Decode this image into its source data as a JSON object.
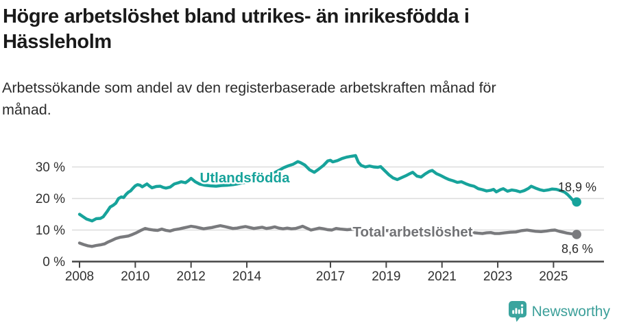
{
  "header": {
    "title": "Högre arbetslöshet bland utrikes- än inrikesfödda i\nHässleholm",
    "subtitle": "Arbetssökande som andel av den registerbaserade arbetskraften månad för\nmånad."
  },
  "chart_data": {
    "type": "line",
    "unit": "percent of registered labour force",
    "x_axis": {
      "ticks": [
        {
          "label": "2008",
          "year": 2008
        },
        {
          "label": "2010",
          "year": 2010
        },
        {
          "label": "2012",
          "year": 2012
        },
        {
          "label": "2014",
          "year": 2014
        },
        {
          "label": "2017",
          "year": 2017
        },
        {
          "label": "2019",
          "year": 2019
        },
        {
          "label": "2021",
          "year": 2021
        },
        {
          "label": "2023",
          "year": 2023
        },
        {
          "label": "2025",
          "year": 2025
        }
      ],
      "range": [
        2008,
        2025.9
      ]
    },
    "y_axis": {
      "ticks": [
        {
          "label": "0 %",
          "value": 0
        },
        {
          "label": "10 %",
          "value": 10
        },
        {
          "label": "20 %",
          "value": 20
        },
        {
          "label": "30 %",
          "value": 30
        }
      ],
      "range": [
        0,
        34
      ],
      "grid": true
    },
    "colors": {
      "gridline": "#dcdcdc",
      "axis": "#454545"
    },
    "series": [
      {
        "name": "Utlandsfödda",
        "color": "#17a39b",
        "end_label": "18,9 %",
        "end_value": 18.9,
        "points": [
          [
            2008.0,
            15.0
          ],
          [
            2008.1,
            14.4
          ],
          [
            2008.25,
            13.5
          ],
          [
            2008.45,
            12.9
          ],
          [
            2008.6,
            13.6
          ],
          [
            2008.75,
            13.7
          ],
          [
            2008.85,
            14.2
          ],
          [
            2009.0,
            16.0
          ],
          [
            2009.1,
            17.3
          ],
          [
            2009.2,
            17.8
          ],
          [
            2009.3,
            18.5
          ],
          [
            2009.4,
            20.0
          ],
          [
            2009.5,
            20.5
          ],
          [
            2009.58,
            20.3
          ],
          [
            2009.67,
            21.3
          ],
          [
            2009.75,
            22.0
          ],
          [
            2009.83,
            22.4
          ],
          [
            2009.92,
            23.3
          ],
          [
            2010.0,
            24.0
          ],
          [
            2010.08,
            24.4
          ],
          [
            2010.17,
            24.2
          ],
          [
            2010.25,
            23.7
          ],
          [
            2010.42,
            24.6
          ],
          [
            2010.5,
            24.0
          ],
          [
            2010.6,
            23.4
          ],
          [
            2010.75,
            23.8
          ],
          [
            2010.9,
            23.9
          ],
          [
            2011.0,
            23.5
          ],
          [
            2011.1,
            23.3
          ],
          [
            2011.25,
            23.6
          ],
          [
            2011.4,
            24.6
          ],
          [
            2011.55,
            25.0
          ],
          [
            2011.65,
            25.3
          ],
          [
            2011.8,
            25.0
          ],
          [
            2011.9,
            25.6
          ],
          [
            2012.0,
            26.4
          ],
          [
            2012.15,
            25.3
          ],
          [
            2012.3,
            24.6
          ],
          [
            2012.5,
            24.2
          ],
          [
            2012.7,
            24.0
          ],
          [
            2012.9,
            23.9
          ],
          [
            2013.1,
            24.1
          ],
          [
            2013.3,
            24.2
          ],
          [
            2013.5,
            24.4
          ],
          [
            2013.65,
            24.6
          ],
          [
            2013.8,
            24.9
          ],
          [
            2014.0,
            25.2
          ],
          [
            2014.17,
            25.4
          ],
          [
            2014.33,
            25.8
          ],
          [
            2014.5,
            26.2
          ],
          [
            2014.67,
            26.8
          ],
          [
            2014.83,
            27.5
          ],
          [
            2015.0,
            28.2
          ],
          [
            2015.17,
            29.0
          ],
          [
            2015.33,
            29.8
          ],
          [
            2015.5,
            30.4
          ],
          [
            2015.67,
            30.9
          ],
          [
            2015.83,
            31.7
          ],
          [
            2015.92,
            31.4
          ],
          [
            2016.08,
            30.6
          ],
          [
            2016.25,
            29.1
          ],
          [
            2016.42,
            28.3
          ],
          [
            2016.58,
            29.3
          ],
          [
            2016.75,
            30.5
          ],
          [
            2016.9,
            31.9
          ],
          [
            2017.0,
            32.1
          ],
          [
            2017.08,
            31.6
          ],
          [
            2017.25,
            32.0
          ],
          [
            2017.42,
            32.7
          ],
          [
            2017.58,
            33.1
          ],
          [
            2017.75,
            33.4
          ],
          [
            2017.9,
            33.6
          ],
          [
            2018.0,
            31.5
          ],
          [
            2018.1,
            30.5
          ],
          [
            2018.25,
            30.0
          ],
          [
            2018.4,
            30.3
          ],
          [
            2018.55,
            30.0
          ],
          [
            2018.7,
            29.9
          ],
          [
            2018.8,
            30.1
          ],
          [
            2018.95,
            28.8
          ],
          [
            2019.1,
            27.5
          ],
          [
            2019.25,
            26.5
          ],
          [
            2019.4,
            26.0
          ],
          [
            2019.55,
            26.6
          ],
          [
            2019.7,
            27.2
          ],
          [
            2019.85,
            27.9
          ],
          [
            2019.95,
            28.3
          ],
          [
            2020.1,
            27.1
          ],
          [
            2020.25,
            26.8
          ],
          [
            2020.4,
            27.8
          ],
          [
            2020.55,
            28.6
          ],
          [
            2020.65,
            28.9
          ],
          [
            2020.8,
            27.9
          ],
          [
            2020.95,
            27.3
          ],
          [
            2021.1,
            26.6
          ],
          [
            2021.25,
            26.0
          ],
          [
            2021.4,
            25.6
          ],
          [
            2021.55,
            25.1
          ],
          [
            2021.7,
            25.3
          ],
          [
            2021.85,
            24.7
          ],
          [
            2022.0,
            24.2
          ],
          [
            2022.15,
            23.9
          ],
          [
            2022.3,
            23.1
          ],
          [
            2022.45,
            22.8
          ],
          [
            2022.6,
            22.4
          ],
          [
            2022.75,
            22.6
          ],
          [
            2022.85,
            22.9
          ],
          [
            2022.95,
            22.1
          ],
          [
            2023.1,
            22.8
          ],
          [
            2023.2,
            23.1
          ],
          [
            2023.35,
            22.3
          ],
          [
            2023.5,
            22.7
          ],
          [
            2023.65,
            22.5
          ],
          [
            2023.8,
            22.1
          ],
          [
            2023.95,
            22.5
          ],
          [
            2024.1,
            23.2
          ],
          [
            2024.2,
            23.9
          ],
          [
            2024.35,
            23.3
          ],
          [
            2024.5,
            22.8
          ],
          [
            2024.65,
            22.5
          ],
          [
            2024.8,
            22.7
          ],
          [
            2024.95,
            23.0
          ],
          [
            2025.1,
            22.9
          ],
          [
            2025.25,
            22.5
          ],
          [
            2025.4,
            22.0
          ],
          [
            2025.5,
            21.3
          ],
          [
            2025.6,
            20.4
          ],
          [
            2025.7,
            19.4
          ],
          [
            2025.83,
            18.9
          ]
        ]
      },
      {
        "name": "Total arbetslöshet",
        "color": "#797a7d",
        "end_label": "8,6 %",
        "end_value": 8.6,
        "points": [
          [
            2008.0,
            5.9
          ],
          [
            2008.15,
            5.4
          ],
          [
            2008.3,
            5.0
          ],
          [
            2008.45,
            4.8
          ],
          [
            2008.6,
            5.1
          ],
          [
            2008.75,
            5.3
          ],
          [
            2008.9,
            5.6
          ],
          [
            2009.0,
            6.1
          ],
          [
            2009.15,
            6.7
          ],
          [
            2009.3,
            7.3
          ],
          [
            2009.45,
            7.7
          ],
          [
            2009.6,
            7.9
          ],
          [
            2009.75,
            8.1
          ],
          [
            2009.9,
            8.6
          ],
          [
            2010.05,
            9.2
          ],
          [
            2010.2,
            9.9
          ],
          [
            2010.35,
            10.5
          ],
          [
            2010.5,
            10.2
          ],
          [
            2010.65,
            10.0
          ],
          [
            2010.8,
            9.9
          ],
          [
            2010.95,
            10.3
          ],
          [
            2011.1,
            9.9
          ],
          [
            2011.25,
            9.7
          ],
          [
            2011.4,
            10.1
          ],
          [
            2011.55,
            10.3
          ],
          [
            2011.7,
            10.6
          ],
          [
            2011.85,
            10.9
          ],
          [
            2012.0,
            11.2
          ],
          [
            2012.15,
            11.0
          ],
          [
            2012.3,
            10.7
          ],
          [
            2012.45,
            10.4
          ],
          [
            2012.6,
            10.6
          ],
          [
            2012.75,
            10.8
          ],
          [
            2012.9,
            11.1
          ],
          [
            2013.05,
            11.4
          ],
          [
            2013.2,
            11.1
          ],
          [
            2013.35,
            10.8
          ],
          [
            2013.5,
            10.5
          ],
          [
            2013.65,
            10.6
          ],
          [
            2013.8,
            10.9
          ],
          [
            2013.95,
            11.1
          ],
          [
            2014.1,
            10.8
          ],
          [
            2014.25,
            10.5
          ],
          [
            2014.4,
            10.7
          ],
          [
            2014.55,
            10.9
          ],
          [
            2014.7,
            10.5
          ],
          [
            2014.85,
            10.7
          ],
          [
            2015.0,
            11.0
          ],
          [
            2015.15,
            10.6
          ],
          [
            2015.3,
            10.4
          ],
          [
            2015.45,
            10.6
          ],
          [
            2015.6,
            10.4
          ],
          [
            2015.75,
            10.5
          ],
          [
            2015.9,
            10.9
          ],
          [
            2016.0,
            11.2
          ],
          [
            2016.15,
            10.6
          ],
          [
            2016.3,
            10.0
          ],
          [
            2016.45,
            10.3
          ],
          [
            2016.6,
            10.6
          ],
          [
            2016.75,
            10.4
          ],
          [
            2016.9,
            10.1
          ],
          [
            2017.05,
            10.0
          ],
          [
            2017.2,
            10.5
          ],
          [
            2017.35,
            10.3
          ],
          [
            2017.6,
            10.1
          ],
          [
            2017.85,
            10.3
          ],
          [
            2018.1,
            10.2
          ],
          [
            2018.35,
            10.0
          ],
          [
            2018.6,
            10.1
          ],
          [
            2018.85,
            9.9
          ],
          [
            2019.1,
            9.8
          ],
          [
            2019.35,
            9.7
          ],
          [
            2019.6,
            9.9
          ],
          [
            2019.85,
            9.8
          ],
          [
            2020.1,
            10.0
          ],
          [
            2020.35,
            10.2
          ],
          [
            2020.6,
            10.0
          ],
          [
            2020.85,
            9.8
          ],
          [
            2021.1,
            9.7
          ],
          [
            2021.35,
            9.5
          ],
          [
            2021.6,
            9.4
          ],
          [
            2021.85,
            9.3
          ],
          [
            2022.1,
            9.2
          ],
          [
            2022.3,
            9.0
          ],
          [
            2022.45,
            8.9
          ],
          [
            2022.6,
            9.1
          ],
          [
            2022.75,
            9.2
          ],
          [
            2022.9,
            8.9
          ],
          [
            2023.05,
            8.9
          ],
          [
            2023.25,
            9.1
          ],
          [
            2023.45,
            9.3
          ],
          [
            2023.65,
            9.4
          ],
          [
            2023.85,
            9.8
          ],
          [
            2024.05,
            10.0
          ],
          [
            2024.2,
            9.8
          ],
          [
            2024.35,
            9.6
          ],
          [
            2024.55,
            9.5
          ],
          [
            2024.75,
            9.7
          ],
          [
            2024.9,
            9.9
          ],
          [
            2025.05,
            10.0
          ],
          [
            2025.2,
            9.6
          ],
          [
            2025.35,
            9.3
          ],
          [
            2025.5,
            9.0
          ],
          [
            2025.65,
            8.8
          ],
          [
            2025.83,
            8.6
          ]
        ]
      }
    ],
    "title": "Högre arbetslöshet bland utrikes- än inrikesfödda i Hässleholm",
    "legend_position": "inline-labels"
  },
  "footer": {
    "brand": "Newsworthy",
    "brand_color": "#3b9f99",
    "logo_color": "#3aa49e"
  }
}
